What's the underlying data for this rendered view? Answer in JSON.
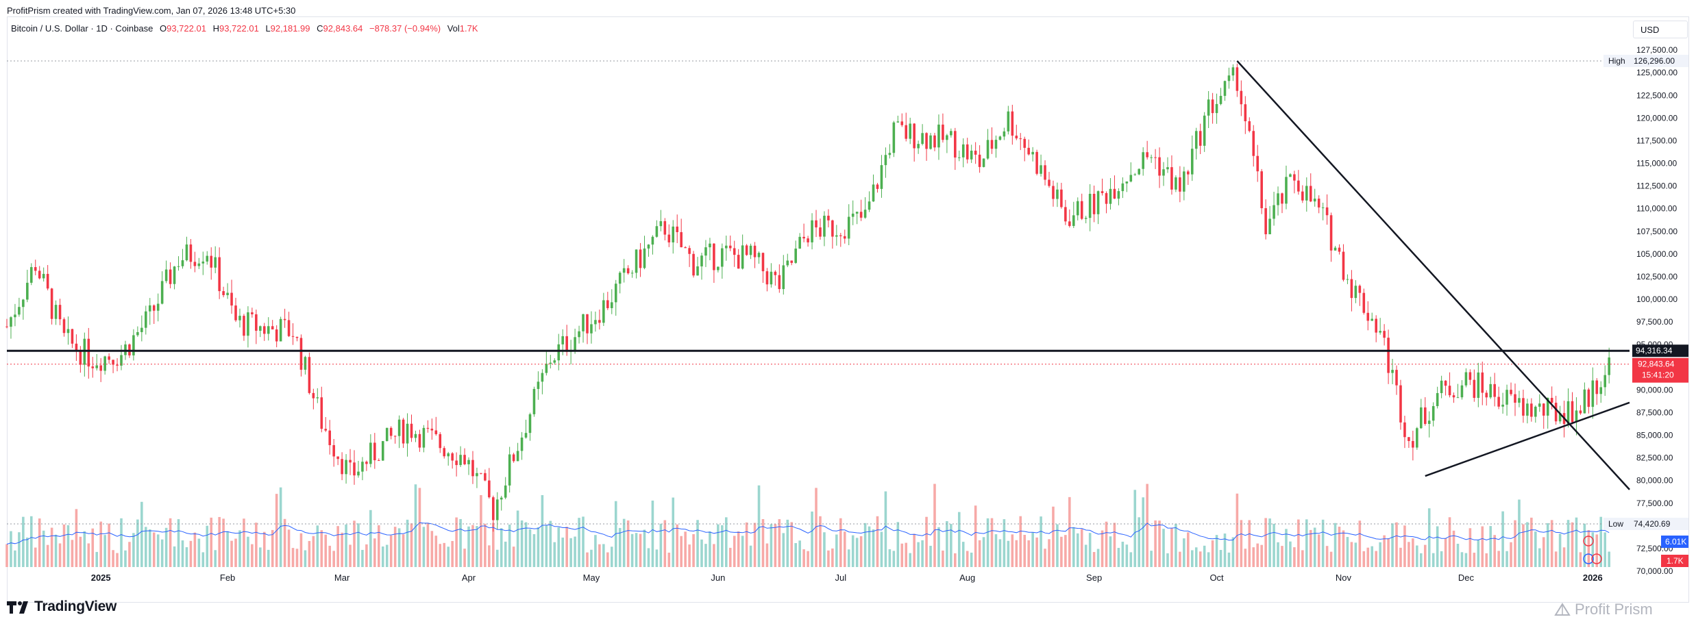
{
  "header": {
    "credit": "ProfitPrism created with TradingView.com, Jan 07, 2026 13:48 UTC+5:30",
    "symbol": "Bitcoin / U.S. Dollar · 1D · Coinbase",
    "open_label": "O",
    "open": "93,722.01",
    "high_label": "H",
    "high": "93,722.01",
    "low_label": "L",
    "low": "92,181.99",
    "close_label": "C",
    "close": "92,843.64",
    "change": "−878.37 (−0.94%)",
    "vol_label": "Vol",
    "vol": "1.7K"
  },
  "currency": "USD",
  "colors": {
    "up": "#4caf50",
    "down": "#f23645",
    "up_volume": "#9bd6cf",
    "down_volume": "#f7a9a7",
    "ma_line": "#2962ff",
    "price_label_bg": "#f23645",
    "level_label_bg": "#131722",
    "ma_label_bg": "#2962ff"
  },
  "brand": {
    "name": "TradingView",
    "watermark": "Profit Prism"
  },
  "chart_data": {
    "type": "candlestick",
    "y_axis": {
      "min": 72500,
      "max": 130000,
      "step": 2500,
      "scale": "linear",
      "tick_labels": [
        "127,500.00",
        "125,000.00",
        "122,500.00",
        "120,000.00",
        "117,500.00",
        "115,000.00",
        "112,500.00",
        "110,000.00",
        "107,500.00",
        "105,000.00",
        "102,500.00",
        "100,000.00",
        "97,500.00",
        "95,000.00",
        "92,500.00",
        "90,000.00",
        "87,500.00",
        "85,000.00",
        "82,500.00",
        "80,000.00",
        "77,500.00",
        "75,000.00",
        "72,500.00",
        "70,000.00"
      ]
    },
    "x_axis": {
      "range": [
        "2024-12-09",
        "2026-01-10"
      ],
      "tick_labels": [
        {
          "date": "2025-01-01",
          "label": "2025",
          "bold": true
        },
        {
          "date": "2025-02-01",
          "label": "Feb"
        },
        {
          "date": "2025-03-01",
          "label": "Mar"
        },
        {
          "date": "2025-04-01",
          "label": "Apr"
        },
        {
          "date": "2025-05-01",
          "label": "May"
        },
        {
          "date": "2025-06-01",
          "label": "Jun"
        },
        {
          "date": "2025-07-01",
          "label": "Jul"
        },
        {
          "date": "2025-08-01",
          "label": "Aug"
        },
        {
          "date": "2025-09-01",
          "label": "Sep"
        },
        {
          "date": "2025-10-01",
          "label": "Oct"
        },
        {
          "date": "2025-11-01",
          "label": "Nov"
        },
        {
          "date": "2025-12-01",
          "label": "Dec"
        },
        {
          "date": "2026-01-01",
          "label": "2026",
          "bold": true
        }
      ]
    },
    "close_series": [
      [
        "2024-12-09",
        97000
      ],
      [
        "2024-12-16",
        104000
      ],
      [
        "2024-12-23",
        95500
      ],
      [
        "2024-12-30",
        93500
      ],
      [
        "2025-01-06",
        94000
      ],
      [
        "2025-01-13",
        98000
      ],
      [
        "2025-01-20",
        104500
      ],
      [
        "2025-01-27",
        105500
      ],
      [
        "2025-02-03",
        97500
      ],
      [
        "2025-02-10",
        96800
      ],
      [
        "2025-02-17",
        96500
      ],
      [
        "2025-02-24",
        86500
      ],
      [
        "2025-03-03",
        80500
      ],
      [
        "2025-03-10",
        83500
      ],
      [
        "2025-03-17",
        86000
      ],
      [
        "2025-03-24",
        84200
      ],
      [
        "2025-03-31",
        82600
      ],
      [
        "2025-04-07",
        76800
      ],
      [
        "2025-04-14",
        85200
      ],
      [
        "2025-04-21",
        93500
      ],
      [
        "2025-04-28",
        96500
      ],
      [
        "2025-05-05",
        99800
      ],
      [
        "2025-05-12",
        104000
      ],
      [
        "2025-05-19",
        108000
      ],
      [
        "2025-05-26",
        104000
      ],
      [
        "2025-06-02",
        105000
      ],
      [
        "2025-06-09",
        104500
      ],
      [
        "2025-06-16",
        101500
      ],
      [
        "2025-06-23",
        107500
      ],
      [
        "2025-06-30",
        108000
      ],
      [
        "2025-07-07",
        109000
      ],
      [
        "2025-07-14",
        118500
      ],
      [
        "2025-07-21",
        118000
      ],
      [
        "2025-07-28",
        117500
      ],
      [
        "2025-08-04",
        115000
      ],
      [
        "2025-08-11",
        120000
      ],
      [
        "2025-08-18",
        115000
      ],
      [
        "2025-08-25",
        109000
      ],
      [
        "2025-09-01",
        110500
      ],
      [
        "2025-09-08",
        113500
      ],
      [
        "2025-09-15",
        116000
      ],
      [
        "2025-09-22",
        112000
      ],
      [
        "2025-09-29",
        121000
      ],
      [
        "2025-10-06",
        124500
      ],
      [
        "2025-10-13",
        108000
      ],
      [
        "2025-10-20",
        113500
      ],
      [
        "2025-10-27",
        109000
      ],
      [
        "2025-11-03",
        101500
      ],
      [
        "2025-11-10",
        96500
      ],
      [
        "2025-11-17",
        84500
      ],
      [
        "2025-11-24",
        89500
      ],
      [
        "2025-12-01",
        91000
      ],
      [
        "2025-12-08",
        89500
      ],
      [
        "2025-12-15",
        88000
      ],
      [
        "2025-12-22",
        87500
      ],
      [
        "2025-12-29",
        88000
      ],
      [
        "2026-01-05",
        92843.64
      ]
    ],
    "levels": {
      "all_time_high": {
        "label": "High",
        "value": "126,296.00",
        "date": "2025-10-06"
      },
      "low": {
        "label": "Low",
        "value": "74,420.69"
      },
      "horizontal_line": {
        "value": "94,316.34"
      },
      "last_price": {
        "value": "92,843.64",
        "countdown": "15:41:20"
      }
    },
    "trendlines": [
      {
        "name": "descending",
        "from": [
          "2025-10-06",
          126296
        ],
        "to": [
          "2026-01-10",
          79000
        ]
      },
      {
        "name": "ascending",
        "from": [
          "2025-11-21",
          80500
        ],
        "to": [
          "2026-01-10",
          88600
        ]
      }
    ],
    "volume": {
      "ma_value": "6.01K",
      "last_value": "1.7K"
    }
  }
}
